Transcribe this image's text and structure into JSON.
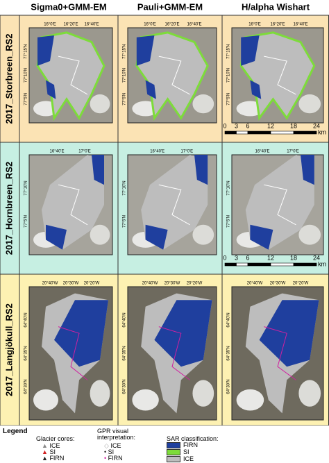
{
  "headers": [
    "Sigma0+GMM-EM",
    "Pauli+GMM-EM",
    "H/alpha Wishart"
  ],
  "rows": [
    {
      "label": "2017_Storbreen_RS2",
      "lon": [
        "16°0'E",
        "16°20'E",
        "16°40'E"
      ],
      "lat": [
        "77°15'N",
        "77°10'N",
        "77°5'N"
      ],
      "scale": {
        "ticks": [
          0,
          3,
          6,
          12,
          18,
          24
        ],
        "unit": "km"
      }
    },
    {
      "label": "2017_Hornbreen_RS2",
      "lon": [
        "16°40'E",
        "17°0'E"
      ],
      "lat": [
        "77°10'N",
        "77°5'N"
      ],
      "scale": {
        "ticks": [
          0,
          3,
          6,
          12,
          18,
          24
        ],
        "unit": "km"
      }
    },
    {
      "label": "2017_Langjökull_RS2",
      "lon": [
        "20°40'W",
        "20°30'W",
        "20°20'W"
      ],
      "lat": [
        "64°40'N",
        "64°35'N",
        "64°30'N"
      ]
    }
  ],
  "legend": {
    "title": "Legend",
    "cores": {
      "title": "Glacier cores:",
      "items": [
        "ICE",
        "SI",
        "FIRN"
      ]
    },
    "gpr": {
      "title": "GPR visual interpretation:",
      "items": [
        "ICE",
        "SI",
        "FIRN"
      ]
    },
    "sar": {
      "title": "SAR classification:",
      "items": [
        "FIRN",
        "SI",
        "ICE"
      ]
    }
  }
}
